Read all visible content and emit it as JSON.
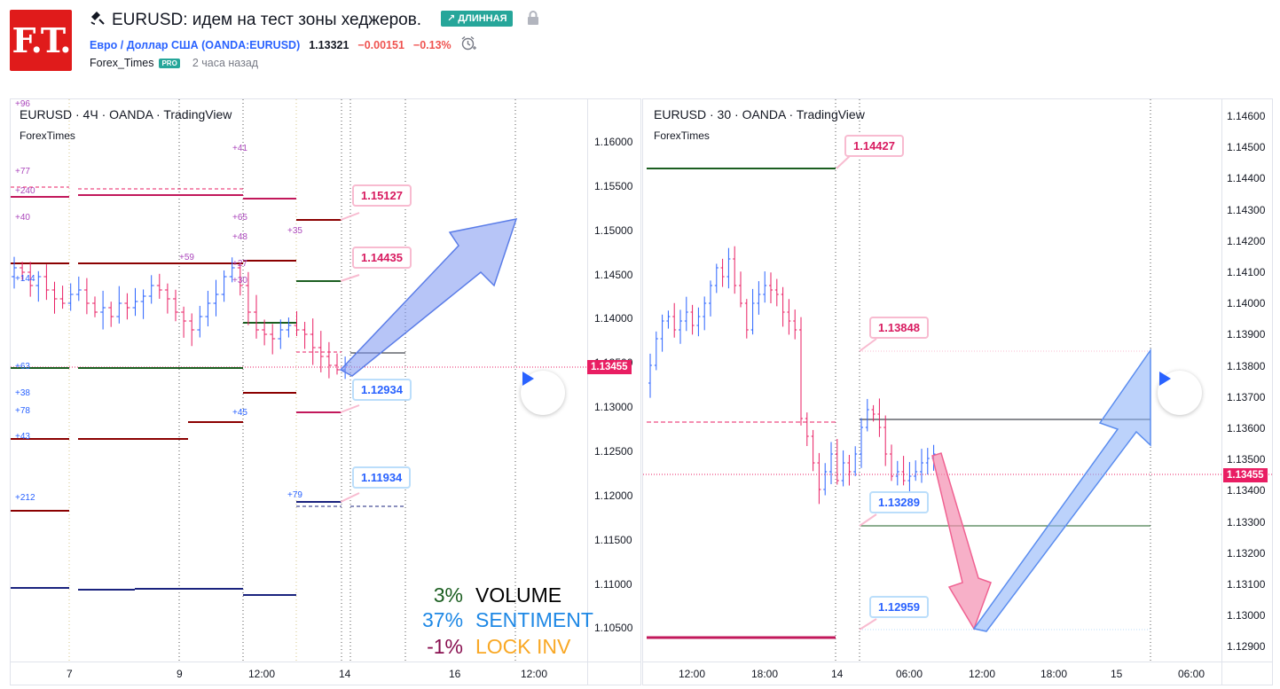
{
  "header": {
    "logo_text": "F.T.",
    "title": "EURUSD: идем на тест зоны хеджеров.",
    "direction_badge": "↗ ДЛИННАЯ",
    "symbol_name": "Евро / Доллар США (OANDA:EURUSD)",
    "price": "1.13321",
    "change": "−0.00151",
    "change_pct": "−0.13%",
    "author": "Forex_Times",
    "author_badge": "PRO",
    "published": "2 часа назад"
  },
  "colors": {
    "accent_blue": "#2962ff",
    "bull": "#2962ff",
    "bear": "#e91e63",
    "long_badge": "#26a69a",
    "logo": "#e01b1b"
  },
  "left_chart": {
    "title": "EURUSD · 4Ч · OANDA · TradingView",
    "subtitle": "ForexTimes",
    "current_price_tag": "1.13455",
    "price_axis": [
      "1.16000",
      "1.15500",
      "1.15000",
      "1.14500",
      "1.14000",
      "1.13500",
      "1.13000",
      "1.12500",
      "1.12000",
      "1.11500",
      "1.11000",
      "1.10500"
    ],
    "time_axis": [
      "7",
      "9",
      "12:00",
      "14",
      "16",
      "12:00"
    ],
    "callouts": [
      "1.15127",
      "1.14435",
      "1.12934",
      "1.11934"
    ],
    "volume_labels": [
      "+96",
      "+41",
      "+77",
      "+240",
      "+40",
      "+65",
      "+48",
      "+35",
      "+59",
      "+27",
      "+144",
      "+30",
      "+63",
      "+38",
      "+78",
      "+45",
      "+43",
      "+212",
      "+79"
    ],
    "stats": [
      {
        "num": "3%",
        "label": "VOLUME",
        "num_color": "#1b5e20",
        "label_color": "#000000"
      },
      {
        "num": "37%",
        "label": "SENTIMENT",
        "num_color": "#1e88e5",
        "label_color": "#1e88e5"
      },
      {
        "num": "-1%",
        "label": "LOCK INV",
        "num_color": "#880e4f",
        "label_color": "#f9a825"
      }
    ]
  },
  "right_chart": {
    "title": "EURUSD · 30 · OANDA · TradingView",
    "subtitle": "ForexTimes",
    "current_price_tag": "1.13455",
    "price_axis": [
      "1.14600",
      "1.14500",
      "1.14400",
      "1.14300",
      "1.14200",
      "1.14100",
      "1.14000",
      "1.13900",
      "1.13800",
      "1.13700",
      "1.13600",
      "1.13500",
      "1.13400",
      "1.13300",
      "1.13200",
      "1.13100",
      "1.13000",
      "1.12900"
    ],
    "time_axis": [
      "12:00",
      "18:00",
      "14",
      "06:00",
      "12:00",
      "18:00",
      "15",
      "06:00"
    ],
    "callouts": [
      "1.14427",
      "1.13848",
      "1.13289",
      "1.12959"
    ]
  }
}
